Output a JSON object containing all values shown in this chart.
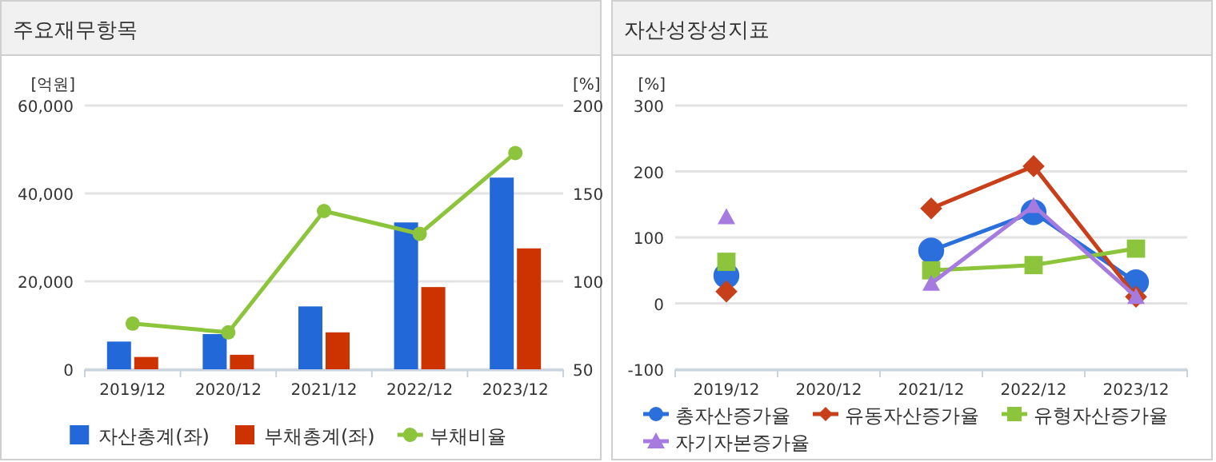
{
  "chart_data": [
    {
      "type": "bar",
      "title": "주요재무항목",
      "ylabel": "[억원]",
      "y2label": "[%]",
      "categories": [
        "2019/12",
        "2020/12",
        "2021/12",
        "2022/12",
        "2023/12"
      ],
      "ylim": [
        0,
        60000
      ],
      "yticks": [
        {
          "value": 0,
          "label": "0"
        },
        {
          "value": 20000,
          "label": "20,000"
        },
        {
          "value": 40000,
          "label": "40,000"
        },
        {
          "value": 60000,
          "label": "60,000"
        }
      ],
      "y2lim": [
        50,
        200
      ],
      "y2ticks": [
        50,
        100,
        150,
        200
      ],
      "grid": "y",
      "legend": "bottom",
      "series": [
        {
          "name": "자산총계(좌)",
          "color": "#2268d8",
          "values": [
            6300,
            8000,
            14300,
            33400,
            43600
          ]
        },
        {
          "name": "부채총계(좌)",
          "color": "#cc3300",
          "values": [
            2800,
            3300,
            8400,
            18700,
            27500
          ]
        },
        {
          "name": "부채비율",
          "type": "line",
          "axis": "y2",
          "marker": "circle",
          "color": "#8cc43c",
          "values": [
            76,
            71,
            140,
            127,
            173
          ]
        }
      ]
    },
    {
      "type": "line",
      "title": "자산성장성지표",
      "ylabel": "[%]",
      "categories": [
        "2019/12",
        "2020/12",
        "2021/12",
        "2022/12",
        "2023/12"
      ],
      "ylim": [
        -100,
        300
      ],
      "yticks": [
        -100,
        0,
        100,
        200,
        300
      ],
      "grid": "y",
      "legend": "bottom",
      "series": [
        {
          "name": "총자산증가율",
          "color": "#2a6fdb",
          "marker": "circle",
          "values": [
            42,
            null,
            80,
            138,
            32
          ]
        },
        {
          "name": "유동자산증가율",
          "color": "#c8401a",
          "marker": "diamond",
          "values": [
            18,
            null,
            144,
            208,
            10
          ]
        },
        {
          "name": "유형자산증가율",
          "color": "#8cc43c",
          "marker": "square",
          "values": [
            63,
            null,
            50,
            58,
            83
          ]
        },
        {
          "name": "자기자본증가율",
          "color": "#a57be0",
          "marker": "triangle",
          "values": [
            131,
            null,
            30,
            148,
            10
          ]
        }
      ]
    }
  ]
}
